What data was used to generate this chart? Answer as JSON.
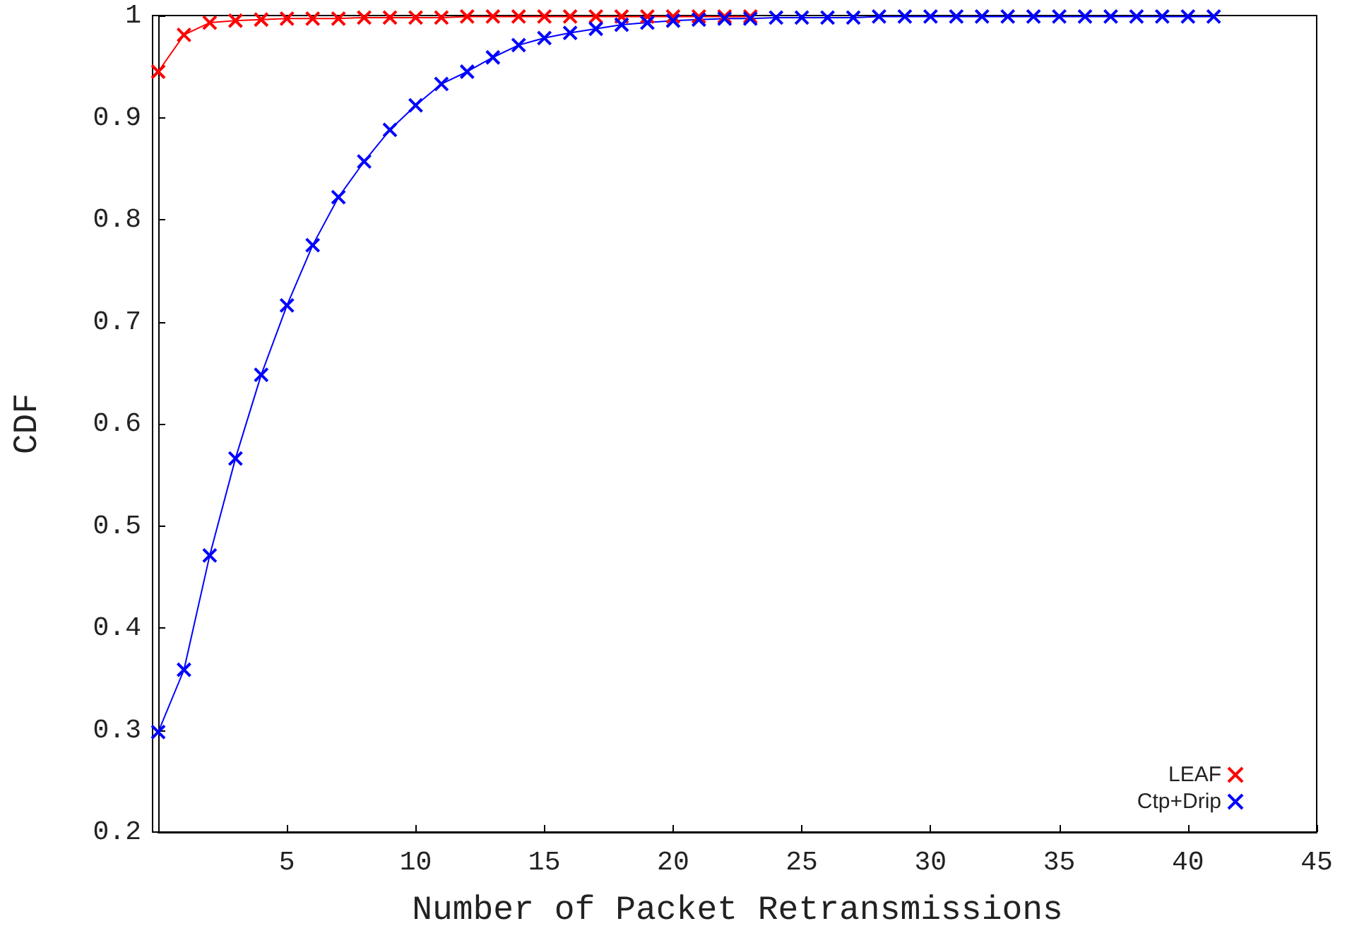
{
  "chart_data": {
    "type": "line",
    "xlabel": "Number of Packet Retransmissions",
    "ylabel": "CDF",
    "xlim": [
      0,
      45
    ],
    "xticks": [
      5,
      10,
      15,
      20,
      25,
      30,
      35,
      40,
      45
    ],
    "ylim": [
      0.2,
      1
    ],
    "yticks": [
      0.2,
      0.3,
      0.4,
      0.5,
      0.6,
      0.7,
      0.8,
      0.9,
      1
    ],
    "x": [
      0,
      1,
      2,
      3,
      4,
      5,
      6,
      7,
      8,
      9,
      10,
      11,
      12,
      13,
      14,
      15,
      16,
      17,
      18,
      19,
      20,
      21,
      22,
      23,
      24,
      25,
      26,
      27,
      28,
      29,
      30,
      31,
      32,
      33,
      34,
      35,
      36,
      37,
      38,
      39,
      40,
      41
    ],
    "series": [
      {
        "name": "LEAF",
        "color": "#ff0000",
        "values": [
          0.945,
          0.981,
          0.993,
          0.995,
          0.996,
          0.997,
          0.997,
          0.997,
          0.998,
          0.998,
          0.998,
          0.998,
          0.999,
          0.999,
          0.999,
          0.999,
          0.999,
          0.999,
          0.999,
          0.999,
          0.999,
          0.999,
          0.999,
          0.999,
          null,
          null,
          null,
          null,
          null,
          null,
          null,
          null,
          null,
          null,
          null,
          null,
          null,
          null,
          null,
          null,
          null,
          null
        ]
      },
      {
        "name": "Ctp+Drip",
        "color": "#0000ff",
        "values": [
          0.298,
          0.359,
          0.471,
          0.566,
          0.648,
          0.716,
          0.775,
          0.822,
          0.857,
          0.888,
          0.912,
          0.933,
          0.945,
          0.959,
          0.971,
          0.978,
          0.983,
          0.987,
          0.991,
          0.993,
          0.995,
          0.996,
          0.997,
          0.997,
          0.998,
          0.998,
          0.998,
          0.998,
          0.999,
          0.999,
          0.999,
          0.999,
          0.999,
          0.999,
          0.999,
          0.999,
          0.999,
          0.999,
          0.999,
          0.999,
          0.999,
          0.999
        ]
      }
    ],
    "marker": "cross",
    "line_style": "solid",
    "grid": false,
    "legend": "bottom right"
  }
}
